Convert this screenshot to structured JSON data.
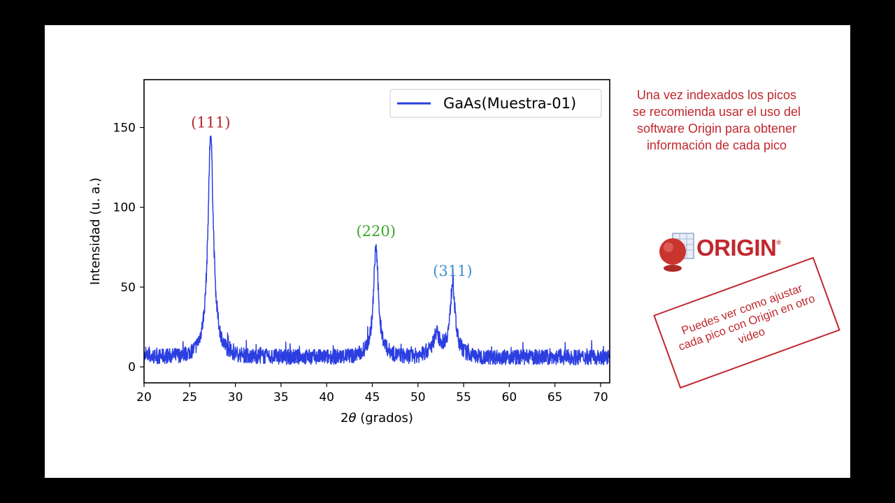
{
  "chart_data": {
    "type": "line",
    "title": "",
    "xlabel_prefix": "2",
    "xlabel_symbol": "θ",
    "xlabel_suffix": " (grados)",
    "ylabel": "Intensidad (u. a.)",
    "xlim": [
      20,
      71
    ],
    "ylim": [
      -10,
      180
    ],
    "xticks": [
      20,
      25,
      30,
      35,
      40,
      45,
      50,
      55,
      60,
      65,
      70
    ],
    "yticks": [
      0,
      50,
      100,
      150
    ],
    "grid": false,
    "legend_position": "top-right",
    "series": [
      {
        "name": "GaAs(Muestra-01)",
        "color": "#2b3ee0",
        "baseline": 6,
        "noise_amplitude": 6,
        "peaks": [
          {
            "x": 27.3,
            "height": 136,
            "width": 0.35
          },
          {
            "x": 45.4,
            "height": 65,
            "width": 0.3
          },
          {
            "x": 53.8,
            "height": 42,
            "width": 0.3
          },
          {
            "x": 52.0,
            "height": 10,
            "width": 0.3
          }
        ]
      }
    ],
    "annotations": [
      {
        "text": "(111)",
        "x": 27.3,
        "y": 150,
        "color": "#b22a2a"
      },
      {
        "text": "(220)",
        "x": 45.4,
        "y": 82,
        "color": "#3aa629"
      },
      {
        "text": "(311)",
        "x": 53.8,
        "y": 57,
        "color": "#3b8fc9"
      }
    ]
  },
  "note_text": "Una vez indexados los picos se recomienda usar el uso del software Origin para obtener información de cada pico",
  "logo": {
    "text": "ORIGIN",
    "mark": "®",
    "icon": "origin-logo-icon",
    "color": "#c0282e"
  },
  "stamp_text": "Puedes ver como ajustar cada pico con Origin en otro video"
}
